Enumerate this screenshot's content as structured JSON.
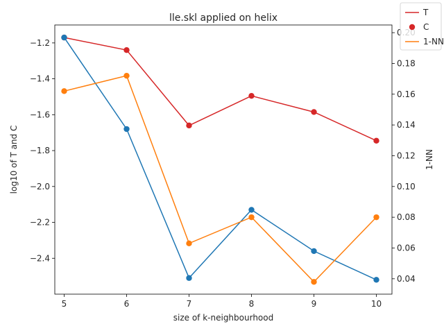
{
  "chart_data": {
    "type": "line",
    "title": "lle.skl applied on helix",
    "xlabel": "size of k-neighbourhood",
    "ylabel_left": "log10 of T and C",
    "ylabel_right": "1-NN",
    "x": [
      5,
      6,
      7,
      8,
      9,
      10
    ],
    "xticks": [
      "5",
      "6",
      "7",
      "8",
      "9",
      "10"
    ],
    "ylim_left": [
      -2.6,
      -1.1
    ],
    "yticks_left": [
      "-1.2",
      "-1.4",
      "-1.6",
      "-1.8",
      "-2.0",
      "-2.2",
      "-2.4"
    ],
    "ylim_right": [
      0.03,
      0.205
    ],
    "yticks_right": [
      "0.04",
      "0.06",
      "0.08",
      "0.10",
      "0.12",
      "0.14",
      "0.16",
      "0.18",
      "0.20"
    ],
    "series": [
      {
        "name": "T",
        "axis": "left",
        "color": "#d62728",
        "marker": "o",
        "line": true,
        "values": [
          -1.17,
          -1.24,
          -1.66,
          -1.495,
          -1.585,
          -1.745
        ]
      },
      {
        "name": "C",
        "axis": "left",
        "color": "#1f77b4",
        "marker": "o",
        "line": true,
        "values": [
          -1.17,
          -1.68,
          -2.51,
          -2.13,
          -2.36,
          -2.52
        ]
      },
      {
        "name": "1-NN",
        "axis": "right",
        "color": "#ff7f0e",
        "marker": "o",
        "line": true,
        "values": [
          0.162,
          0.172,
          0.063,
          0.08,
          0.038,
          0.08
        ]
      }
    ],
    "legend": {
      "placement": "top-right",
      "entries": [
        {
          "label": "T",
          "style": "line",
          "color": "#d62728"
        },
        {
          "label": "C",
          "style": "marker",
          "color": "#d62728"
        },
        {
          "label": "1-NN",
          "style": "line",
          "color": "#ff7f0e"
        }
      ]
    },
    "grid": false
  }
}
